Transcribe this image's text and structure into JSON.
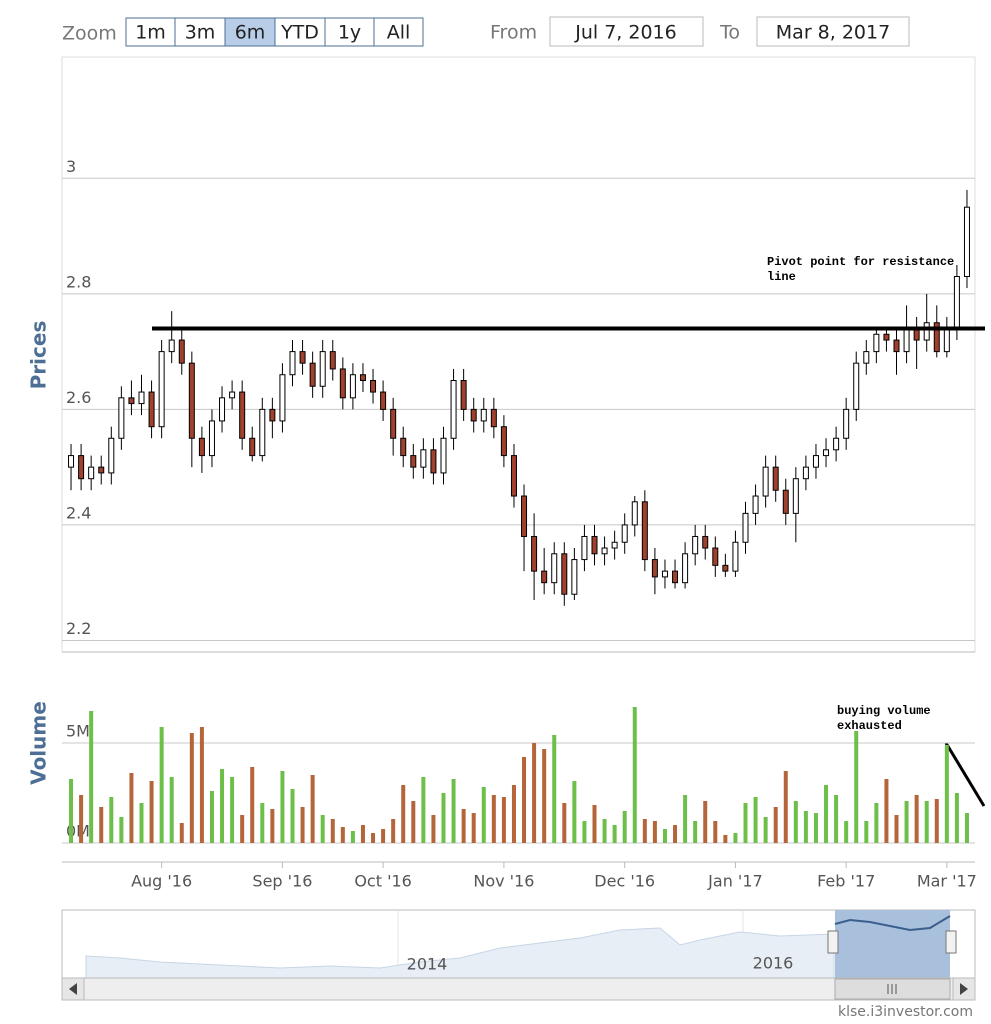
{
  "toolbar": {
    "zoom_label": "Zoom",
    "buttons": [
      "1m",
      "3m",
      "6m",
      "YTD",
      "1y",
      "All"
    ],
    "selected": "6m",
    "from_label": "From",
    "from": "Jul 7, 2016",
    "to_label": "To",
    "to": "Mar 8, 2017"
  },
  "navigator": {
    "labels": [
      "2014",
      "2016"
    ]
  },
  "credit": "klse.i3investor.com",
  "chart_data": [
    {
      "type": "candlestick",
      "y_label": "Prices",
      "ylim": [
        2.18,
        3.21
      ],
      "yticks": [
        2.2,
        2.4,
        2.6,
        2.8,
        3
      ],
      "grid": true,
      "up_color": "#ffffff",
      "down_color": "#a0412d",
      "line_color": "#000000",
      "open": [
        2.5,
        2.52,
        2.48,
        2.5,
        2.49,
        2.55,
        2.62,
        2.61,
        2.63,
        2.57,
        2.7,
        2.72,
        2.68,
        2.55,
        2.52,
        2.58,
        2.62,
        2.63,
        2.55,
        2.52,
        2.6,
        2.58,
        2.66,
        2.7,
        2.68,
        2.64,
        2.7,
        2.67,
        2.62,
        2.66,
        2.65,
        2.63,
        2.6,
        2.55,
        2.52,
        2.5,
        2.53,
        2.49,
        2.55,
        2.65,
        2.6,
        2.58,
        2.6,
        2.57,
        2.52,
        2.45,
        2.38,
        2.32,
        2.3,
        2.35,
        2.28,
        2.34,
        2.38,
        2.35,
        2.36,
        2.37,
        2.4,
        2.44,
        2.34,
        2.31,
        2.32,
        2.3,
        2.35,
        2.38,
        2.36,
        2.33,
        2.32,
        2.37,
        2.42,
        2.45,
        2.5,
        2.46,
        2.42,
        2.48,
        2.5,
        2.52,
        2.53,
        2.55,
        2.6,
        2.68,
        2.7,
        2.73,
        2.72,
        2.7,
        2.74,
        2.72,
        2.75,
        2.7,
        2.74,
        2.83
      ],
      "high": [
        2.54,
        2.54,
        2.52,
        2.52,
        2.57,
        2.64,
        2.65,
        2.66,
        2.65,
        2.72,
        2.77,
        2.74,
        2.7,
        2.57,
        2.6,
        2.64,
        2.65,
        2.65,
        2.57,
        2.62,
        2.62,
        2.68,
        2.72,
        2.72,
        2.7,
        2.72,
        2.72,
        2.69,
        2.68,
        2.68,
        2.67,
        2.65,
        2.62,
        2.57,
        2.54,
        2.55,
        2.55,
        2.57,
        2.67,
        2.67,
        2.62,
        2.62,
        2.62,
        2.59,
        2.54,
        2.47,
        2.42,
        2.36,
        2.37,
        2.37,
        2.36,
        2.4,
        2.4,
        2.38,
        2.39,
        2.42,
        2.45,
        2.46,
        2.36,
        2.34,
        2.34,
        2.37,
        2.4,
        2.4,
        2.38,
        2.35,
        2.39,
        2.44,
        2.47,
        2.52,
        2.52,
        2.48,
        2.5,
        2.52,
        2.54,
        2.55,
        2.57,
        2.62,
        2.7,
        2.72,
        2.74,
        2.74,
        2.74,
        2.78,
        2.76,
        2.8,
        2.78,
        2.76,
        2.85,
        2.98
      ],
      "low": [
        2.46,
        2.46,
        2.46,
        2.47,
        2.47,
        2.53,
        2.59,
        2.59,
        2.55,
        2.55,
        2.68,
        2.66,
        2.5,
        2.49,
        2.5,
        2.56,
        2.6,
        2.53,
        2.51,
        2.51,
        2.55,
        2.56,
        2.64,
        2.66,
        2.62,
        2.62,
        2.65,
        2.6,
        2.6,
        2.63,
        2.61,
        2.58,
        2.52,
        2.5,
        2.48,
        2.48,
        2.47,
        2.47,
        2.53,
        2.58,
        2.56,
        2.56,
        2.55,
        2.5,
        2.43,
        2.32,
        2.27,
        2.28,
        2.28,
        2.26,
        2.27,
        2.32,
        2.33,
        2.33,
        2.34,
        2.35,
        2.38,
        2.32,
        2.28,
        2.29,
        2.29,
        2.29,
        2.33,
        2.34,
        2.31,
        2.31,
        2.31,
        2.35,
        2.4,
        2.43,
        2.44,
        2.4,
        2.37,
        2.46,
        2.48,
        2.5,
        2.51,
        2.53,
        2.58,
        2.66,
        2.68,
        2.7,
        2.66,
        2.68,
        2.67,
        2.7,
        2.69,
        2.69,
        2.72,
        2.81
      ],
      "close": [
        2.52,
        2.48,
        2.5,
        2.49,
        2.55,
        2.62,
        2.61,
        2.63,
        2.57,
        2.7,
        2.72,
        2.68,
        2.55,
        2.52,
        2.58,
        2.62,
        2.63,
        2.55,
        2.52,
        2.6,
        2.58,
        2.66,
        2.7,
        2.68,
        2.64,
        2.7,
        2.67,
        2.62,
        2.66,
        2.65,
        2.63,
        2.6,
        2.55,
        2.52,
        2.5,
        2.53,
        2.49,
        2.55,
        2.65,
        2.6,
        2.58,
        2.6,
        2.57,
        2.52,
        2.45,
        2.38,
        2.32,
        2.3,
        2.35,
        2.28,
        2.34,
        2.38,
        2.35,
        2.36,
        2.37,
        2.4,
        2.44,
        2.34,
        2.31,
        2.32,
        2.3,
        2.35,
        2.38,
        2.36,
        2.33,
        2.32,
        2.37,
        2.42,
        2.45,
        2.5,
        2.46,
        2.42,
        2.48,
        2.5,
        2.52,
        2.53,
        2.55,
        2.6,
        2.68,
        2.7,
        2.73,
        2.72,
        2.7,
        2.74,
        2.72,
        2.75,
        2.7,
        2.74,
        2.83,
        2.95
      ],
      "resistance_line": 2.74,
      "annotation": [
        "Pivot point for resistance",
        "line"
      ]
    },
    {
      "type": "bar",
      "y_label": "Volume",
      "ylim": [
        0,
        6.9
      ],
      "yticks": [
        {
          "value": 0,
          "label": "0M"
        },
        {
          "value": 5,
          "label": "5M"
        }
      ],
      "grid": true,
      "up_color": "#6cc04a",
      "down_color": "#b5653a",
      "categories": [
        null,
        null,
        null,
        null,
        null,
        null,
        null,
        null,
        null,
        "Aug '16",
        null,
        null,
        null,
        null,
        null,
        null,
        null,
        null,
        null,
        null,
        null,
        "Sep '16",
        null,
        null,
        null,
        null,
        null,
        null,
        null,
        null,
        null,
        "Oct '16",
        null,
        null,
        null,
        null,
        null,
        null,
        null,
        null,
        null,
        null,
        null,
        "Nov '16",
        null,
        null,
        null,
        null,
        null,
        null,
        null,
        null,
        null,
        null,
        null,
        "Dec '16",
        null,
        null,
        null,
        null,
        null,
        null,
        null,
        null,
        null,
        null,
        "Jan '17",
        null,
        null,
        null,
        null,
        null,
        null,
        null,
        null,
        null,
        null,
        "Feb '17",
        null,
        null,
        null,
        null,
        null,
        null,
        null,
        null,
        null,
        "Mar '17",
        null,
        null
      ],
      "values": [
        3.2,
        2.4,
        6.6,
        1.8,
        2.3,
        1.3,
        3.5,
        2.0,
        3.1,
        5.8,
        3.3,
        1.0,
        5.5,
        5.8,
        2.6,
        3.7,
        3.3,
        1.4,
        3.8,
        2.0,
        1.7,
        3.6,
        2.7,
        1.8,
        3.4,
        1.4,
        1.2,
        0.8,
        0.6,
        0.9,
        0.5,
        0.7,
        1.2,
        2.9,
        2.1,
        3.3,
        1.4,
        2.5,
        3.2,
        1.7,
        1.5,
        2.8,
        2.4,
        2.3,
        2.9,
        4.3,
        5.0,
        4.7,
        5.4,
        2.0,
        3.1,
        1.1,
        1.9,
        1.2,
        0.9,
        1.6,
        6.8,
        1.2,
        1.1,
        0.7,
        0.9,
        2.4,
        1.1,
        2.1,
        1.1,
        0.4,
        0.5,
        2.0,
        2.3,
        1.3,
        1.8,
        3.6,
        2.1,
        1.6,
        1.5,
        2.9,
        2.4,
        1.1,
        5.6,
        1.1,
        2.0,
        3.2,
        1.4,
        2.1,
        2.4,
        2.1,
        2.2,
        4.9,
        2.5,
        1.5
      ],
      "annotation": [
        "buying volume",
        "exhausted"
      ]
    }
  ]
}
